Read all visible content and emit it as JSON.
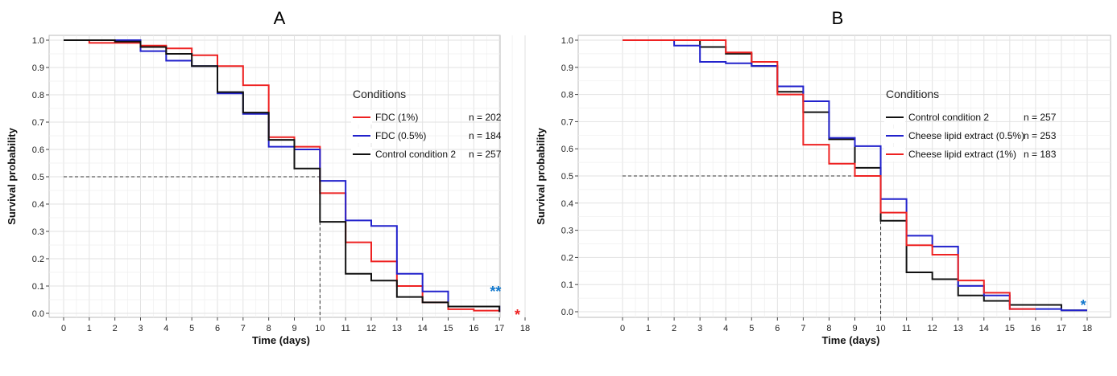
{
  "chart_data": [
    {
      "type": "line",
      "panel": "A",
      "xlabel": "Time (days)",
      "ylabel": "Survival probability",
      "xlim": [
        0,
        18
      ],
      "ylim": [
        0,
        1
      ],
      "xticks": [
        0,
        1,
        2,
        3,
        4,
        5,
        6,
        7,
        8,
        9,
        10,
        11,
        12,
        13,
        14,
        15,
        16,
        17,
        18
      ],
      "yticks": [
        "0.0",
        "0.1",
        "0.2",
        "0.3",
        "0.4",
        "0.5",
        "0.6",
        "0.7",
        "0.8",
        "0.9",
        "1.0"
      ],
      "grid": true,
      "legend_title": "Conditions",
      "legend_position": "top-right",
      "median_x": 10,
      "median_y": 0.5,
      "series": [
        {
          "name": "FDC (1%)",
          "n_label": "n = 202",
          "color": "#ee2222",
          "x": [
            0,
            1,
            2,
            3,
            4,
            5,
            6,
            7,
            8,
            9,
            10,
            11,
            12,
            13,
            14,
            15,
            16,
            17
          ],
          "y": [
            1.0,
            0.99,
            0.99,
            0.98,
            0.97,
            0.945,
            0.905,
            0.835,
            0.645,
            0.61,
            0.44,
            0.26,
            0.19,
            0.1,
            0.04,
            0.015,
            0.01,
            0.005
          ]
        },
        {
          "name": "FDC (0.5%)",
          "n_label": "n = 184",
          "color": "#2222cc",
          "x": [
            0,
            1,
            2,
            3,
            4,
            5,
            6,
            7,
            8,
            9,
            10,
            11,
            12,
            13,
            14,
            15,
            16,
            17
          ],
          "y": [
            1.0,
            1.0,
            1.0,
            0.96,
            0.925,
            0.905,
            0.805,
            0.73,
            0.61,
            0.6,
            0.485,
            0.34,
            0.32,
            0.145,
            0.08,
            0.025,
            0.025,
            0.005
          ]
        },
        {
          "name": "Control condition 2",
          "n_label": "n = 257",
          "color": "#111111",
          "x": [
            0,
            1,
            2,
            3,
            4,
            5,
            6,
            7,
            8,
            9,
            10,
            11,
            12,
            13,
            14,
            15,
            16,
            17
          ],
          "y": [
            1.0,
            1.0,
            0.995,
            0.975,
            0.95,
            0.905,
            0.81,
            0.735,
            0.635,
            0.53,
            0.335,
            0.145,
            0.12,
            0.06,
            0.04,
            0.025,
            0.025,
            0.005
          ]
        }
      ],
      "annotations": [
        {
          "text": "**",
          "x": 16.85,
          "y": 0.085,
          "color": "#1177cc"
        },
        {
          "text": "*",
          "x": 17.7,
          "y": 0.0,
          "color": "#ee2222"
        }
      ]
    },
    {
      "type": "line",
      "panel": "B",
      "xlabel": "Time (days)",
      "ylabel": "Survival probability",
      "xlim": [
        0,
        18
      ],
      "ylim": [
        0,
        1
      ],
      "xticks": [
        0,
        1,
        2,
        3,
        4,
        5,
        6,
        7,
        8,
        9,
        10,
        11,
        12,
        13,
        14,
        15,
        16,
        17,
        18
      ],
      "yticks": [
        "0.0",
        "0.1",
        "0.2",
        "0.3",
        "0.4",
        "0.5",
        "0.6",
        "0.7",
        "0.8",
        "0.9",
        "1.0"
      ],
      "grid": true,
      "legend_title": "Conditions",
      "legend_position": "top-right",
      "median_x": 10,
      "median_y": 0.5,
      "series": [
        {
          "name": "Control condition 2",
          "n_label": "n = 257",
          "color": "#111111",
          "x": [
            0,
            1,
            2,
            3,
            4,
            5,
            6,
            7,
            8,
            9,
            10,
            11,
            12,
            13,
            14,
            15,
            16,
            17,
            18
          ],
          "y": [
            1.0,
            1.0,
            1.0,
            0.975,
            0.95,
            0.905,
            0.81,
            0.735,
            0.635,
            0.53,
            0.335,
            0.145,
            0.12,
            0.06,
            0.04,
            0.025,
            0.025,
            0.005,
            0.005
          ]
        },
        {
          "name": "Cheese lipid extract (0.5%)",
          "n_label": "n = 253",
          "color": "#2222cc",
          "x": [
            0,
            1,
            2,
            3,
            4,
            5,
            6,
            7,
            8,
            9,
            10,
            11,
            12,
            13,
            14,
            15,
            16,
            17,
            18
          ],
          "y": [
            1.0,
            1.0,
            0.98,
            0.92,
            0.915,
            0.905,
            0.83,
            0.775,
            0.64,
            0.61,
            0.415,
            0.28,
            0.24,
            0.095,
            0.06,
            0.01,
            0.01,
            0.005,
            0.005
          ]
        },
        {
          "name": "Cheese lipid extract (1%)",
          "n_label": "n = 183",
          "color": "#ee2222",
          "x": [
            0,
            1,
            2,
            3,
            4,
            5,
            6,
            7,
            8,
            9,
            10,
            11,
            12,
            13,
            14,
            15,
            16
          ],
          "y": [
            1.0,
            1.0,
            1.0,
            1.0,
            0.955,
            0.92,
            0.8,
            0.615,
            0.545,
            0.5,
            0.365,
            0.245,
            0.21,
            0.115,
            0.07,
            0.01,
            0.01
          ]
        }
      ],
      "annotations": [
        {
          "text": "*",
          "x": 17.85,
          "y": 0.03,
          "color": "#1177cc"
        }
      ]
    }
  ]
}
